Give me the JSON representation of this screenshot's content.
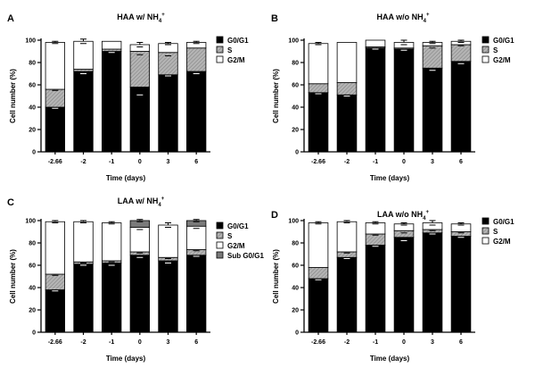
{
  "colors": {
    "G0G1": "#000000",
    "S": "#a8a8a8",
    "G2M": "#ffffff",
    "SubG0G1": "#7a7a7a",
    "axis": "#000000"
  },
  "chart_data": [
    {
      "type": "bar",
      "stacked": true,
      "panel": "A",
      "title": "HAA w/ NH",
      "title_sub": "4",
      "title_sup": "+",
      "xlabel": "Time (days)",
      "ylabel": "Cell number (%)",
      "ylim": [
        0,
        100
      ],
      "yticks": [
        0,
        20,
        40,
        60,
        80,
        100
      ],
      "legend_position": "right",
      "categories": [
        "-2.66",
        "-2",
        "-1",
        "0",
        "3",
        "6"
      ],
      "series": [
        {
          "name": "G0/G1",
          "color_key": "G0G1",
          "pattern": "solid",
          "values": [
            40,
            72,
            90,
            58,
            69,
            72
          ]
        },
        {
          "name": "S",
          "color_key": "S",
          "pattern": "hatch",
          "values": [
            16,
            2,
            2,
            32,
            20,
            21
          ]
        },
        {
          "name": "G2/M",
          "color_key": "G2M",
          "pattern": "solid",
          "values": [
            42,
            25,
            7,
            6,
            8,
            5
          ]
        }
      ],
      "errors": [
        {
          "at": "G0G1",
          "values": [
            1,
            2,
            1,
            7,
            1,
            2
          ]
        },
        {
          "at": "S",
          "values": [
            1,
            0,
            0,
            3,
            3,
            0
          ]
        },
        {
          "at": "G2M",
          "values": [
            1,
            2,
            0,
            2,
            1,
            1
          ]
        }
      ]
    },
    {
      "type": "bar",
      "stacked": true,
      "panel": "B",
      "title": "HAA w/o NH",
      "title_sub": "4",
      "title_sup": "+",
      "xlabel": "Time (days)",
      "ylabel": "Cell number (%)",
      "ylim": [
        0,
        100
      ],
      "yticks": [
        0,
        20,
        40,
        60,
        80,
        100
      ],
      "legend_position": "right",
      "categories": [
        "-2.66",
        "-2",
        "-1",
        "0",
        "3",
        "6"
      ],
      "series": [
        {
          "name": "G0/G1",
          "color_key": "G0G1",
          "pattern": "solid",
          "values": [
            53,
            51,
            93,
            92,
            75,
            81
          ]
        },
        {
          "name": "S",
          "color_key": "S",
          "pattern": "hatch",
          "values": [
            8,
            11,
            1,
            1,
            20,
            15
          ]
        },
        {
          "name": "G2/M",
          "color_key": "G2M",
          "pattern": "solid",
          "values": [
            36,
            36,
            6,
            5,
            3,
            3
          ]
        }
      ],
      "errors": [
        {
          "at": "G0G1",
          "values": [
            1,
            1,
            1,
            1,
            2,
            2
          ]
        },
        {
          "at": "S",
          "values": [
            0,
            0,
            0,
            0,
            2,
            1
          ]
        },
        {
          "at": "G2M",
          "values": [
            1,
            0,
            0,
            2,
            1,
            1
          ]
        }
      ]
    },
    {
      "type": "bar",
      "stacked": true,
      "panel": "C",
      "title": "LAA w/ NH",
      "title_sub": "4",
      "title_sup": "+",
      "xlabel": "Time (days)",
      "ylabel": "Cell number (%)",
      "ylim": [
        0,
        100
      ],
      "yticks": [
        0,
        20,
        40,
        60,
        80,
        100
      ],
      "legend_position": "right",
      "categories": [
        "-2.66",
        "-2",
        "-1",
        "0",
        "3",
        "6"
      ],
      "series": [
        {
          "name": "G0/G1",
          "color_key": "G0G1",
          "pattern": "solid",
          "values": [
            38,
            61,
            62,
            69,
            64,
            69
          ]
        },
        {
          "name": "S",
          "color_key": "S",
          "pattern": "hatch",
          "values": [
            14,
            2,
            2,
            3,
            3,
            5
          ]
        },
        {
          "name": "G2/M",
          "color_key": "G2M",
          "pattern": "solid",
          "values": [
            47,
            36,
            34,
            22,
            29,
            21
          ]
        },
        {
          "name": "Sub G0/G1",
          "color_key": "SubG0G1",
          "pattern": "solid",
          "values": [
            0,
            0,
            0,
            6,
            0,
            5
          ]
        }
      ],
      "errors": [
        {
          "at": "G0G1",
          "values": [
            1,
            1,
            2,
            2,
            2,
            1
          ]
        },
        {
          "at": "S",
          "values": [
            1,
            1,
            1,
            1,
            1,
            1
          ]
        },
        {
          "at": "G2M",
          "values": [
            1,
            1,
            1,
            2,
            2,
            2
          ]
        },
        {
          "at": "SubG0G1",
          "values": [
            0,
            0,
            0,
            1,
            0,
            1
          ]
        }
      ]
    },
    {
      "type": "bar",
      "stacked": true,
      "panel": "D",
      "title": "LAA w/o NH",
      "title_sub": "4",
      "title_sup": "+",
      "xlabel": "Time (days)",
      "ylabel": "Cell number (%)",
      "ylim": [
        0,
        100
      ],
      "yticks": [
        0,
        20,
        40,
        60,
        80,
        100
      ],
      "legend_position": "right",
      "categories": [
        "-2.66",
        "-2",
        "-1",
        "0",
        "3",
        "6"
      ],
      "series": [
        {
          "name": "G0/G1",
          "color_key": "G0G1",
          "pattern": "solid",
          "values": [
            48,
            67,
            78,
            85,
            89,
            86
          ]
        },
        {
          "name": "S",
          "color_key": "S",
          "pattern": "hatch",
          "values": [
            10,
            5,
            10,
            6,
            3,
            4
          ]
        },
        {
          "name": "G2/M",
          "color_key": "G2M",
          "pattern": "solid",
          "values": [
            40,
            27,
            10,
            6,
            6,
            7
          ]
        }
      ],
      "errors": [
        {
          "at": "G0G1",
          "values": [
            1,
            1,
            1,
            3,
            1,
            1
          ]
        },
        {
          "at": "S",
          "values": [
            0,
            1,
            1,
            2,
            1,
            1
          ]
        },
        {
          "at": "G2M",
          "values": [
            1,
            1,
            1,
            1,
            2,
            1
          ]
        }
      ]
    }
  ]
}
